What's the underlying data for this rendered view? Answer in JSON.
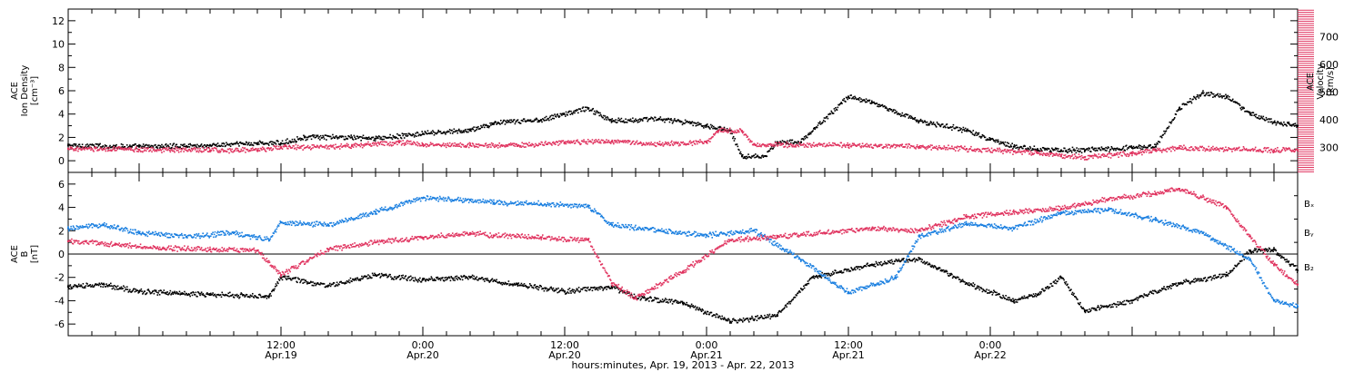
{
  "chart_data": [
    {
      "type": "scatter",
      "panel": "top",
      "left_axis": {
        "title_lines": [
          "ACE",
          "Ion Density",
          "[cm⁻³]"
        ],
        "ylim": [
          -1,
          13
        ],
        "ticks": [
          0,
          2,
          4,
          6,
          8,
          10,
          12
        ]
      },
      "right_axis": {
        "title_lines": [
          "ACE",
          "Velocity",
          "[km/s]"
        ],
        "ylim": [
          210,
          800
        ],
        "ticks": [
          300,
          400,
          500,
          600,
          700
        ],
        "color": "#e0335f"
      },
      "series": [
        {
          "axis": "left",
          "color": "#000000",
          "points": [
            [
              -6,
              1.3
            ],
            [
              0,
              1.2
            ],
            [
              6,
              1.3
            ],
            [
              10,
              1.5
            ],
            [
              12,
              1.5
            ],
            [
              14,
              2.0
            ],
            [
              18,
              2.0
            ],
            [
              20,
              1.9
            ],
            [
              24,
              2.3
            ],
            [
              28,
              2.6
            ],
            [
              30,
              3.2
            ],
            [
              34,
              3.5
            ],
            [
              38,
              4.5
            ],
            [
              40,
              3.4
            ],
            [
              44,
              3.6
            ],
            [
              48,
              3.0
            ],
            [
              50,
              2.6
            ],
            [
              51,
              0.4
            ],
            [
              53,
              0.4
            ],
            [
              54,
              1.6
            ],
            [
              56,
              1.6
            ],
            [
              60,
              5.5
            ],
            [
              62,
              5.0
            ],
            [
              66,
              3.4
            ],
            [
              70,
              2.6
            ],
            [
              72,
              1.8
            ],
            [
              74,
              1.2
            ],
            [
              76,
              1.0
            ],
            [
              78,
              0.9
            ],
            [
              80,
              0.9
            ],
            [
              84,
              1.1
            ],
            [
              86,
              1.2
            ],
            [
              88,
              4.5
            ],
            [
              90,
              5.8
            ],
            [
              92,
              5.5
            ],
            [
              94,
              4.0
            ],
            [
              96,
              3.3
            ],
            [
              98,
              3.0
            ]
          ]
        },
        {
          "axis": "right",
          "color": "#e0335f",
          "points": [
            [
              -6,
              296
            ],
            [
              0,
              292
            ],
            [
              6,
              290
            ],
            [
              10,
              290
            ],
            [
              12,
              300
            ],
            [
              18,
              305
            ],
            [
              22,
              318
            ],
            [
              24,
              312
            ],
            [
              28,
              308
            ],
            [
              32,
              307
            ],
            [
              36,
              318
            ],
            [
              40,
              322
            ],
            [
              44,
              312
            ],
            [
              48,
              318
            ],
            [
              49,
              360
            ],
            [
              51,
              360
            ],
            [
              52,
              310
            ],
            [
              60,
              308
            ],
            [
              66,
              302
            ],
            [
              70,
              295
            ],
            [
              74,
              285
            ],
            [
              76,
              280
            ],
            [
              78,
              268
            ],
            [
              80,
              265
            ],
            [
              84,
              278
            ],
            [
              86,
              290
            ],
            [
              88,
              298
            ],
            [
              96,
              290
            ],
            [
              98,
              290
            ]
          ]
        }
      ]
    },
    {
      "type": "scatter",
      "panel": "bottom",
      "left_axis": {
        "title_lines": [
          "ACE",
          "B",
          "[nT]"
        ],
        "ylim": [
          -7,
          7
        ],
        "ticks": [
          -6,
          -4,
          -2,
          0,
          2,
          4,
          6
        ]
      },
      "legend": [
        "Bₓ",
        "Bᵧ",
        "B₂"
      ],
      "series": [
        {
          "name": "Bₓ",
          "color": "#000000",
          "points": [
            [
              -6,
              -2.8
            ],
            [
              -3,
              -2.6
            ],
            [
              0,
              -3.2
            ],
            [
              6,
              -3.5
            ],
            [
              11,
              -3.6
            ],
            [
              12,
              -2.0
            ],
            [
              16,
              -2.7
            ],
            [
              20,
              -1.8
            ],
            [
              24,
              -2.2
            ],
            [
              28,
              -2.0
            ],
            [
              32,
              -2.6
            ],
            [
              36,
              -3.2
            ],
            [
              40,
              -2.8
            ],
            [
              42,
              -3.7
            ],
            [
              46,
              -4.2
            ],
            [
              50,
              -5.8
            ],
            [
              54,
              -5.3
            ],
            [
              57,
              -2.0
            ],
            [
              62,
              -0.9
            ],
            [
              66,
              -0.4
            ],
            [
              70,
              -2.5
            ],
            [
              74,
              -4.0
            ],
            [
              76,
              -3.5
            ],
            [
              78,
              -2.0
            ],
            [
              80,
              -4.9
            ],
            [
              84,
              -4.0
            ],
            [
              88,
              -2.5
            ],
            [
              92,
              -1.8
            ],
            [
              94,
              0.3
            ],
            [
              96,
              0.4
            ],
            [
              98,
              -1.4
            ]
          ]
        },
        {
          "name": "Bᵧ",
          "color": "#1a7fe0",
          "points": [
            [
              -6,
              2.2
            ],
            [
              -3,
              2.5
            ],
            [
              0,
              1.8
            ],
            [
              4,
              1.5
            ],
            [
              8,
              1.8
            ],
            [
              11,
              1.2
            ],
            [
              12,
              2.7
            ],
            [
              16,
              2.5
            ],
            [
              20,
              3.6
            ],
            [
              24,
              4.8
            ],
            [
              28,
              4.6
            ],
            [
              30,
              4.4
            ],
            [
              34,
              4.3
            ],
            [
              38,
              4.1
            ],
            [
              40,
              2.5
            ],
            [
              44,
              2.0
            ],
            [
              48,
              1.6
            ],
            [
              52,
              2.0
            ],
            [
              56,
              -0.5
            ],
            [
              60,
              -3.3
            ],
            [
              64,
              -2.0
            ],
            [
              66,
              1.5
            ],
            [
              70,
              2.6
            ],
            [
              74,
              2.2
            ],
            [
              78,
              3.5
            ],
            [
              82,
              3.8
            ],
            [
              86,
              2.9
            ],
            [
              90,
              1.8
            ],
            [
              94,
              -0.5
            ],
            [
              96,
              -4.0
            ],
            [
              98,
              -4.5
            ]
          ]
        },
        {
          "name": "B₂",
          "color": "#e0335f",
          "points": [
            [
              -6,
              1.1
            ],
            [
              -2,
              0.8
            ],
            [
              2,
              0.5
            ],
            [
              6,
              0.4
            ],
            [
              10,
              0.3
            ],
            [
              12,
              -1.8
            ],
            [
              16,
              0.4
            ],
            [
              20,
              1.0
            ],
            [
              24,
              1.4
            ],
            [
              28,
              1.8
            ],
            [
              30,
              1.6
            ],
            [
              34,
              1.4
            ],
            [
              38,
              1.2
            ],
            [
              40,
              -2.5
            ],
            [
              42,
              -3.8
            ],
            [
              46,
              -1.5
            ],
            [
              50,
              1.2
            ],
            [
              54,
              1.5
            ],
            [
              58,
              1.8
            ],
            [
              62,
              2.2
            ],
            [
              66,
              2.0
            ],
            [
              70,
              3.2
            ],
            [
              74,
              3.6
            ],
            [
              78,
              3.9
            ],
            [
              82,
              4.7
            ],
            [
              86,
              5.2
            ],
            [
              88,
              5.6
            ],
            [
              92,
              4.0
            ],
            [
              94,
              1.5
            ],
            [
              96,
              -0.9
            ],
            [
              98,
              -2.6
            ]
          ]
        }
      ]
    }
  ],
  "x_axis": {
    "range_hours": [
      -6,
      98
    ],
    "label": "hours:minutes, Apr. 19, 2013 - Apr. 22, 2013",
    "ticks": [
      {
        "h": 12,
        "line1": "12:00",
        "line2": "Apr.19"
      },
      {
        "h": 24,
        "line1": "0:00",
        "line2": "Apr.20"
      },
      {
        "h": 36,
        "line1": "12:00",
        "line2": "Apr.20"
      },
      {
        "h": 48,
        "line1": "0:00",
        "line2": "Apr.21"
      },
      {
        "h": 60,
        "line1": "12:00",
        "line2": "Apr.21"
      },
      {
        "h": 72,
        "line1": "0:00",
        "line2": "Apr.22"
      }
    ]
  }
}
